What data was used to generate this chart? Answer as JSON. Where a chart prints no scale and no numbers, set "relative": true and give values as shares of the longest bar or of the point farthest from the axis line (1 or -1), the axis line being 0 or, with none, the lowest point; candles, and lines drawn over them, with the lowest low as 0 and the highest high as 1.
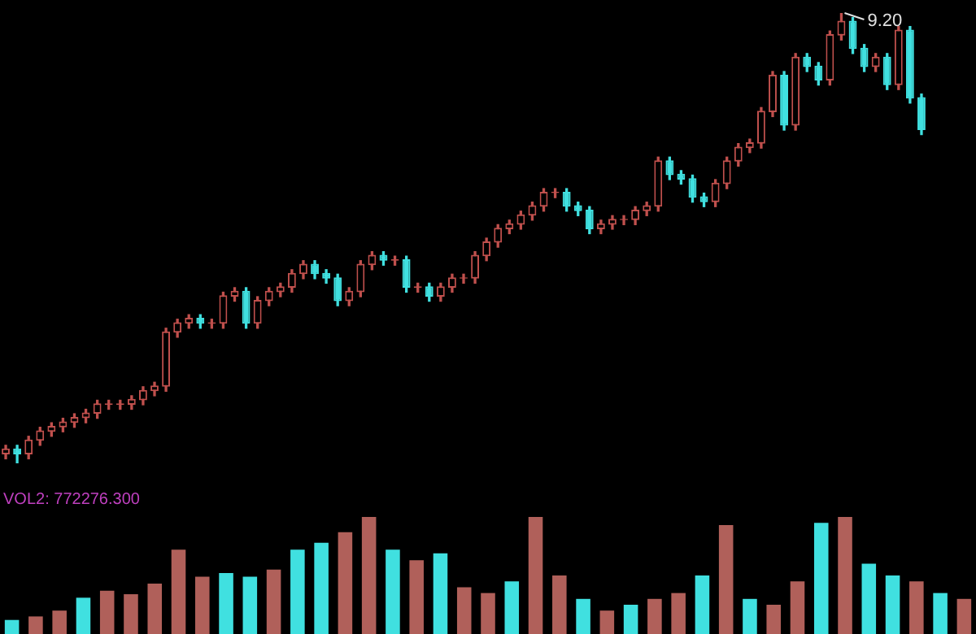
{
  "chart_data": [
    {
      "type": "candlestick",
      "relative": true,
      "categories": [
        null,
        null,
        null,
        null,
        null,
        null,
        null,
        null,
        null,
        null,
        null,
        null,
        null,
        null,
        null,
        null,
        null,
        null,
        null,
        null,
        null,
        null,
        null,
        null,
        null,
        null,
        null,
        null,
        null,
        null,
        null,
        null,
        null,
        null,
        null,
        null,
        null,
        null,
        null,
        null,
        null,
        null,
        null,
        null,
        null,
        null,
        null,
        null,
        null,
        null,
        null,
        null,
        null,
        null,
        null,
        null,
        null,
        null,
        null,
        null,
        null,
        null,
        null,
        null,
        null,
        null,
        null,
        null,
        null,
        null,
        null,
        null,
        null,
        null,
        null,
        null,
        null,
        null,
        null,
        null,
        null
      ],
      "ohlc": [
        [
          0.02,
          0.04,
          0.01,
          0.03
        ],
        [
          0.03,
          0.04,
          0.0,
          0.02
        ],
        [
          0.02,
          0.06,
          0.01,
          0.05
        ],
        [
          0.05,
          0.08,
          0.04,
          0.07
        ],
        [
          0.07,
          0.09,
          0.06,
          0.08
        ],
        [
          0.08,
          0.1,
          0.07,
          0.09
        ],
        [
          0.09,
          0.11,
          0.08,
          0.1
        ],
        [
          0.1,
          0.12,
          0.09,
          0.11
        ],
        [
          0.11,
          0.14,
          0.1,
          0.13
        ],
        [
          0.13,
          0.14,
          0.12,
          0.13
        ],
        [
          0.13,
          0.14,
          0.12,
          0.13
        ],
        [
          0.13,
          0.15,
          0.12,
          0.14
        ],
        [
          0.14,
          0.17,
          0.13,
          0.16
        ],
        [
          0.16,
          0.18,
          0.15,
          0.17
        ],
        [
          0.17,
          0.3,
          0.16,
          0.29
        ],
        [
          0.29,
          0.32,
          0.28,
          0.31
        ],
        [
          0.31,
          0.33,
          0.3,
          0.32
        ],
        [
          0.32,
          0.33,
          0.3,
          0.31
        ],
        [
          0.31,
          0.32,
          0.3,
          0.31
        ],
        [
          0.31,
          0.38,
          0.3,
          0.37
        ],
        [
          0.37,
          0.39,
          0.36,
          0.38
        ],
        [
          0.38,
          0.39,
          0.3,
          0.31
        ],
        [
          0.31,
          0.37,
          0.3,
          0.36
        ],
        [
          0.36,
          0.39,
          0.35,
          0.38
        ],
        [
          0.38,
          0.4,
          0.37,
          0.39
        ],
        [
          0.39,
          0.43,
          0.38,
          0.42
        ],
        [
          0.42,
          0.45,
          0.41,
          0.44
        ],
        [
          0.44,
          0.45,
          0.41,
          0.42
        ],
        [
          0.42,
          0.43,
          0.4,
          0.41
        ],
        [
          0.41,
          0.42,
          0.35,
          0.36
        ],
        [
          0.36,
          0.39,
          0.35,
          0.38
        ],
        [
          0.38,
          0.45,
          0.37,
          0.44
        ],
        [
          0.44,
          0.47,
          0.43,
          0.46
        ],
        [
          0.46,
          0.47,
          0.44,
          0.45
        ],
        [
          0.45,
          0.46,
          0.44,
          0.45
        ],
        [
          0.45,
          0.46,
          0.38,
          0.39
        ],
        [
          0.39,
          0.4,
          0.38,
          0.39
        ],
        [
          0.39,
          0.4,
          0.36,
          0.37
        ],
        [
          0.37,
          0.4,
          0.36,
          0.39
        ],
        [
          0.39,
          0.42,
          0.38,
          0.41
        ],
        [
          0.41,
          0.42,
          0.4,
          0.41
        ],
        [
          0.41,
          0.47,
          0.4,
          0.46
        ],
        [
          0.46,
          0.5,
          0.45,
          0.49
        ],
        [
          0.49,
          0.53,
          0.48,
          0.52
        ],
        [
          0.52,
          0.54,
          0.51,
          0.53
        ],
        [
          0.53,
          0.56,
          0.52,
          0.55
        ],
        [
          0.55,
          0.58,
          0.54,
          0.57
        ],
        [
          0.57,
          0.61,
          0.56,
          0.6
        ],
        [
          0.6,
          0.61,
          0.59,
          0.6
        ],
        [
          0.6,
          0.61,
          0.56,
          0.57
        ],
        [
          0.57,
          0.58,
          0.55,
          0.56
        ],
        [
          0.56,
          0.57,
          0.51,
          0.52
        ],
        [
          0.52,
          0.54,
          0.51,
          0.53
        ],
        [
          0.53,
          0.55,
          0.52,
          0.54
        ],
        [
          0.54,
          0.55,
          0.53,
          0.54
        ],
        [
          0.54,
          0.57,
          0.53,
          0.56
        ],
        [
          0.56,
          0.58,
          0.55,
          0.57
        ],
        [
          0.57,
          0.68,
          0.56,
          0.67
        ],
        [
          0.67,
          0.68,
          0.63,
          0.64
        ],
        [
          0.64,
          0.65,
          0.62,
          0.63
        ],
        [
          0.63,
          0.64,
          0.58,
          0.59
        ],
        [
          0.59,
          0.6,
          0.57,
          0.58
        ],
        [
          0.58,
          0.63,
          0.57,
          0.62
        ],
        [
          0.62,
          0.68,
          0.61,
          0.67
        ],
        [
          0.67,
          0.71,
          0.66,
          0.7
        ],
        [
          0.7,
          0.72,
          0.69,
          0.71
        ],
        [
          0.71,
          0.79,
          0.7,
          0.78
        ],
        [
          0.78,
          0.87,
          0.77,
          0.86
        ],
        [
          0.86,
          0.87,
          0.74,
          0.75
        ],
        [
          0.75,
          0.91,
          0.74,
          0.9
        ],
        [
          0.9,
          0.91,
          0.87,
          0.88
        ],
        [
          0.88,
          0.89,
          0.84,
          0.85
        ],
        [
          0.85,
          0.96,
          0.84,
          0.95
        ],
        [
          0.95,
          1.0,
          0.94,
          0.98
        ],
        [
          0.98,
          0.99,
          0.91,
          0.92
        ],
        [
          0.92,
          0.93,
          0.87,
          0.88
        ],
        [
          0.88,
          0.91,
          0.87,
          0.9
        ],
        [
          0.9,
          0.91,
          0.83,
          0.84
        ],
        [
          0.84,
          0.97,
          0.83,
          0.96
        ],
        [
          0.96,
          0.97,
          0.8,
          0.81
        ],
        [
          0.81,
          0.82,
          0.73,
          0.74
        ]
      ],
      "annotations": [
        "9.20"
      ]
    },
    {
      "type": "bar",
      "relative": true,
      "title": "VOL2: 772276.300",
      "categories": [
        null,
        null,
        null,
        null,
        null,
        null,
        null,
        null,
        null,
        null,
        null,
        null,
        null,
        null,
        null,
        null,
        null,
        null,
        null,
        null,
        null,
        null,
        null,
        null,
        null,
        null,
        null,
        null,
        null,
        null,
        null,
        null,
        null,
        null,
        null,
        null,
        null,
        null,
        null,
        null,
        null
      ],
      "values": [
        0.12,
        0.15,
        0.2,
        0.31,
        0.37,
        0.34,
        0.43,
        0.72,
        0.49,
        0.52,
        0.49,
        0.55,
        0.72,
        0.78,
        0.87,
        1.0,
        0.72,
        0.63,
        0.69,
        0.4,
        0.35,
        0.45,
        1.0,
        0.5,
        0.3,
        0.2,
        0.25,
        0.3,
        0.35,
        0.5,
        0.93,
        0.3,
        0.25,
        0.45,
        0.95,
        1.0,
        0.6,
        0.5,
        0.45,
        0.35,
        0.3
      ],
      "colors": [
        "#40e0e0",
        "#b0605a",
        "#b0605a",
        "#40e0e0",
        "#b0605a",
        "#b0605a",
        "#b0605a",
        "#b0605a",
        "#b0605a",
        "#40e0e0",
        "#40e0e0",
        "#b0605a",
        "#40e0e0",
        "#40e0e0",
        "#b0605a",
        "#b0605a",
        "#40e0e0",
        "#b0605a",
        "#40e0e0",
        "#b0605a",
        "#b0605a",
        "#40e0e0",
        "#b0605a",
        "#b0605a",
        "#40e0e0",
        "#b0605a",
        "#40e0e0",
        "#b0605a",
        "#b0605a",
        "#40e0e0",
        "#b0605a",
        "#40e0e0",
        "#b0605a",
        "#b0605a",
        "#40e0e0",
        "#b0605a",
        "#40e0e0",
        "#40e0e0",
        "#b0605a",
        "#40e0e0",
        "#b0605a"
      ]
    }
  ]
}
